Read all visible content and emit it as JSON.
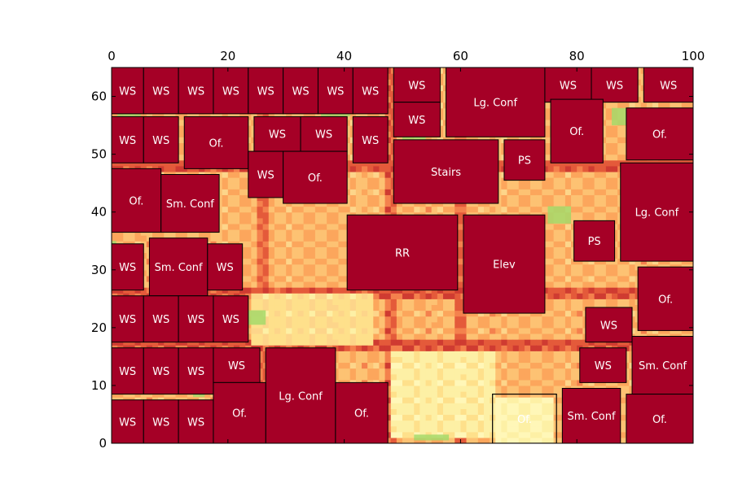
{
  "chart_data": {
    "type": "heatmap",
    "title": "",
    "xlabel": "",
    "ylabel": "",
    "xlim": [
      0,
      100
    ],
    "ylim": [
      0,
      65
    ],
    "x_ticks": [
      "0",
      "20",
      "40",
      "60",
      "80",
      "100"
    ],
    "y_ticks": [
      "0",
      "10",
      "20",
      "30",
      "40",
      "50",
      "60"
    ],
    "x_tick_values": [
      0,
      20,
      40,
      60,
      80,
      100
    ],
    "y_tick_values": [
      0,
      10,
      20,
      30,
      40,
      50,
      60
    ],
    "x_axis_position": "top",
    "colormap": "RdYlGn",
    "room_color": "#a50026",
    "rooms": [
      {
        "label": "WS",
        "x0": 0,
        "x1": 5.5,
        "y0": 57,
        "y1": 65
      },
      {
        "label": "WS",
        "x0": 5.5,
        "x1": 11.5,
        "y0": 57,
        "y1": 65
      },
      {
        "label": "WS",
        "x0": 11.5,
        "x1": 17.5,
        "y0": 57,
        "y1": 65
      },
      {
        "label": "WS",
        "x0": 17.5,
        "x1": 23.5,
        "y0": 57,
        "y1": 65
      },
      {
        "label": "WS",
        "x0": 23.5,
        "x1": 29.5,
        "y0": 57,
        "y1": 65
      },
      {
        "label": "WS",
        "x0": 29.5,
        "x1": 35.5,
        "y0": 57,
        "y1": 65
      },
      {
        "label": "WS",
        "x0": 35.5,
        "x1": 41.5,
        "y0": 57,
        "y1": 65
      },
      {
        "label": "WS",
        "x0": 41.5,
        "x1": 47.5,
        "y0": 57,
        "y1": 65
      },
      {
        "label": "WS",
        "x0": 48.5,
        "x1": 56.5,
        "y0": 59,
        "y1": 65
      },
      {
        "label": "WS",
        "x0": 48.5,
        "x1": 56.5,
        "y0": 53,
        "y1": 59
      },
      {
        "label": "Lg. Conf",
        "x0": 57.5,
        "x1": 74.5,
        "y0": 53,
        "y1": 65
      },
      {
        "label": "WS",
        "x0": 74.5,
        "x1": 82.5,
        "y0": 59,
        "y1": 65
      },
      {
        "label": "WS",
        "x0": 82.5,
        "x1": 90.5,
        "y0": 59,
        "y1": 65
      },
      {
        "label": "WS",
        "x0": 91.5,
        "x1": 100,
        "y0": 59,
        "y1": 65
      },
      {
        "label": "WS",
        "x0": 0,
        "x1": 5.5,
        "y0": 48.5,
        "y1": 56.5
      },
      {
        "label": "WS",
        "x0": 5.5,
        "x1": 11.5,
        "y0": 48.5,
        "y1": 56.5
      },
      {
        "label": "Of.",
        "x0": 12.5,
        "x1": 23.5,
        "y0": 47.5,
        "y1": 56.5
      },
      {
        "label": "WS",
        "x0": 24.5,
        "x1": 32.5,
        "y0": 50.5,
        "y1": 56.5
      },
      {
        "label": "WS",
        "x0": 32.5,
        "x1": 40.5,
        "y0": 50.5,
        "y1": 56.5
      },
      {
        "label": "WS",
        "x0": 41.5,
        "x1": 47.5,
        "y0": 48.5,
        "y1": 56.5
      },
      {
        "label": "Of.",
        "x0": 75.5,
        "x1": 84.5,
        "y0": 48.5,
        "y1": 59.5
      },
      {
        "label": "Of.",
        "x0": 88.5,
        "x1": 100,
        "y0": 49,
        "y1": 58
      },
      {
        "label": "WS",
        "x0": 23.5,
        "x1": 29.5,
        "y0": 42.5,
        "y1": 50.5
      },
      {
        "label": "Of.",
        "x0": 29.5,
        "x1": 40.5,
        "y0": 41.5,
        "y1": 50.5
      },
      {
        "label": "Stairs",
        "x0": 48.5,
        "x1": 66.5,
        "y0": 41.5,
        "y1": 52.5
      },
      {
        "label": "PS",
        "x0": 67.5,
        "x1": 74.5,
        "y0": 45.5,
        "y1": 52.5
      },
      {
        "label": "Of.",
        "x0": 0,
        "x1": 8.5,
        "y0": 36.5,
        "y1": 47.5
      },
      {
        "label": "Sm. Conf",
        "x0": 8.5,
        "x1": 18.5,
        "y0": 36.5,
        "y1": 46.5
      },
      {
        "label": "Lg. Conf",
        "x0": 87.5,
        "x1": 100,
        "y0": 31.5,
        "y1": 48.5
      },
      {
        "label": "PS",
        "x0": 79.5,
        "x1": 86.5,
        "y0": 31.5,
        "y1": 38.5
      },
      {
        "label": "RR",
        "x0": 40.5,
        "x1": 59.5,
        "y0": 26.5,
        "y1": 39.5
      },
      {
        "label": "Elev",
        "x0": 60.5,
        "x1": 74.5,
        "y0": 22.5,
        "y1": 39.5
      },
      {
        "label": "WS",
        "x0": 0,
        "x1": 5.5,
        "y0": 26.5,
        "y1": 34.5
      },
      {
        "label": "Sm. Conf",
        "x0": 6.5,
        "x1": 16.5,
        "y0": 25.5,
        "y1": 35.5
      },
      {
        "label": "WS",
        "x0": 16.5,
        "x1": 22.5,
        "y0": 26.5,
        "y1": 34.5
      },
      {
        "label": "Of.",
        "x0": 90.5,
        "x1": 100,
        "y0": 19.5,
        "y1": 30.5
      },
      {
        "label": "WS",
        "x0": 0,
        "x1": 5.5,
        "y0": 17.5,
        "y1": 25.5
      },
      {
        "label": "WS",
        "x0": 5.5,
        "x1": 11.5,
        "y0": 17.5,
        "y1": 25.5
      },
      {
        "label": "WS",
        "x0": 11.5,
        "x1": 17.5,
        "y0": 17.5,
        "y1": 25.5
      },
      {
        "label": "WS",
        "x0": 17.5,
        "x1": 23.5,
        "y0": 17.5,
        "y1": 25.5
      },
      {
        "label": "WS",
        "x0": 81.5,
        "x1": 89.5,
        "y0": 17.5,
        "y1": 23.5
      },
      {
        "label": "WS",
        "x0": 0,
        "x1": 5.5,
        "y0": 8.5,
        "y1": 16.5
      },
      {
        "label": "WS",
        "x0": 5.5,
        "x1": 11.5,
        "y0": 8.5,
        "y1": 16.5
      },
      {
        "label": "WS",
        "x0": 11.5,
        "x1": 17.5,
        "y0": 8.5,
        "y1": 16.5
      },
      {
        "label": "WS",
        "x0": 17.5,
        "x1": 25.5,
        "y0": 10.5,
        "y1": 16.5
      },
      {
        "label": "Lg. Conf",
        "x0": 26.5,
        "x1": 38.5,
        "y0": 0,
        "y1": 16.5
      },
      {
        "label": "WS",
        "x0": 80.5,
        "x1": 88.5,
        "y0": 10.5,
        "y1": 16.5
      },
      {
        "label": "Sm. Conf",
        "x0": 89.5,
        "x1": 100,
        "y0": 8.5,
        "y1": 18.5
      },
      {
        "label": "WS",
        "x0": 0,
        "x1": 5.5,
        "y0": 0,
        "y1": 7.5
      },
      {
        "label": "WS",
        "x0": 5.5,
        "x1": 11.5,
        "y0": 0,
        "y1": 7.5
      },
      {
        "label": "WS",
        "x0": 11.5,
        "x1": 17.5,
        "y0": 0,
        "y1": 7.5
      },
      {
        "label": "Of.",
        "x0": 17.5,
        "x1": 26.5,
        "y0": 0,
        "y1": 10.5
      },
      {
        "label": "Of.",
        "x0": 38.5,
        "x1": 47.5,
        "y0": 0,
        "y1": 10.5
      },
      {
        "label": "Sm. Conf",
        "x0": 77.5,
        "x1": 87.5,
        "y0": 0,
        "y1": 9.5
      },
      {
        "label": "Of.",
        "x0": 88.5,
        "x1": 100,
        "y0": 0,
        "y1": 8.5
      }
    ],
    "outline_rooms": [
      {
        "label": "Of.",
        "x0": 65.5,
        "x1": 76.5,
        "y0": 0,
        "y1": 8.5
      }
    ]
  }
}
